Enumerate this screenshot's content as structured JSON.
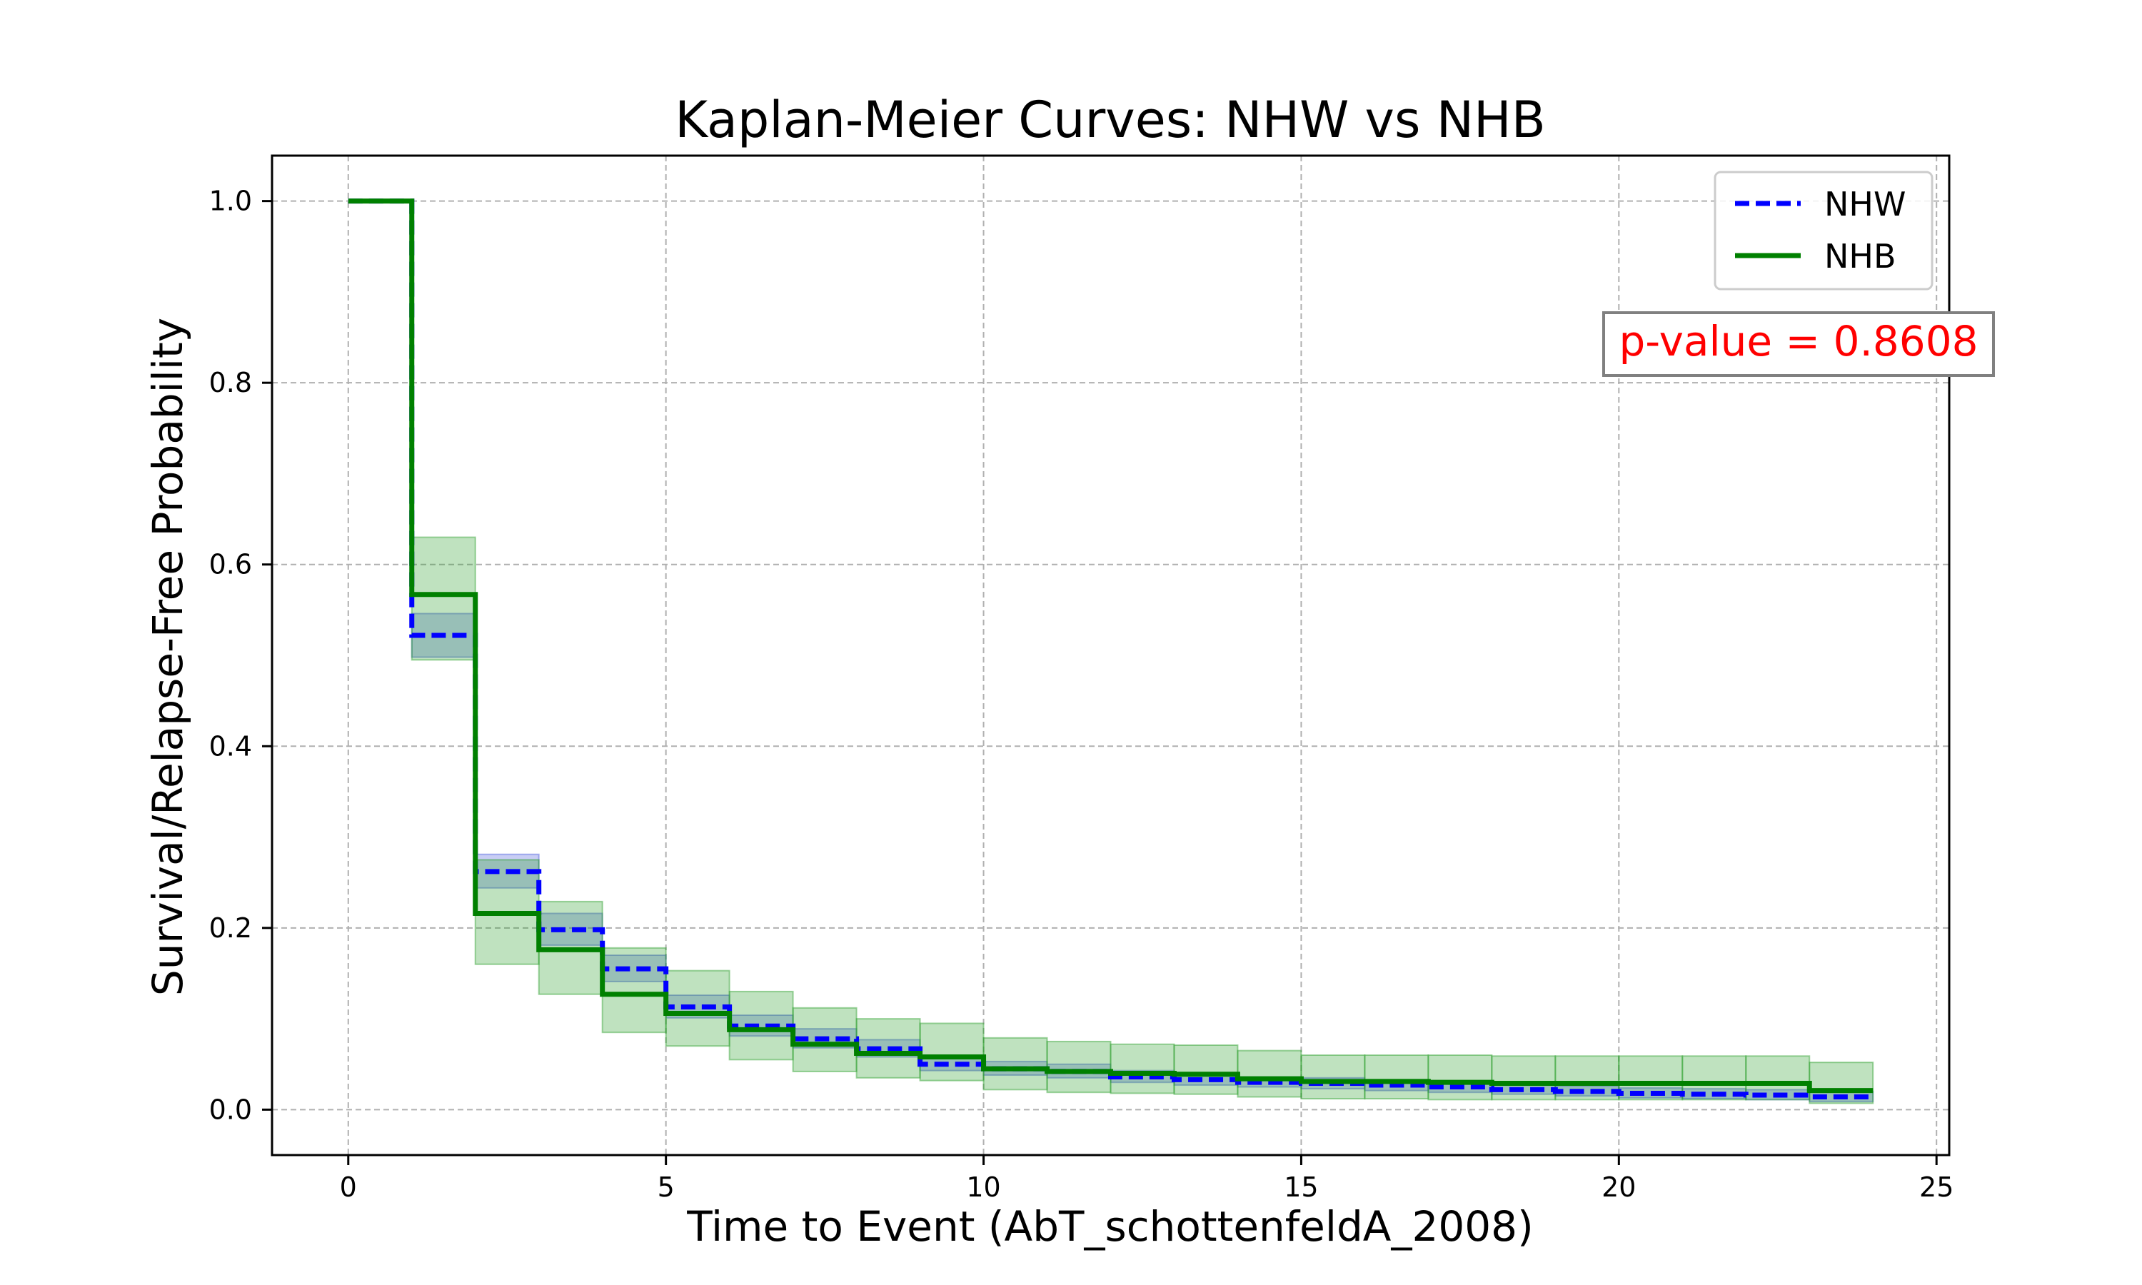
{
  "chart_data": {
    "type": "line",
    "subtype": "kaplan-meier step curves with confidence bands",
    "title": "Kaplan-Meier Curves: NHW vs NHB",
    "xlabel": "Time to Event (AbT_schottenfeldA_2008)",
    "ylabel": "Survival/Relapse-Free Probability",
    "xlim": [
      -1.2,
      25.2
    ],
    "ylim": [
      -0.05,
      1.05
    ],
    "xticks": [
      0,
      5,
      10,
      15,
      20,
      25
    ],
    "xtick_labels": [
      "0",
      "5",
      "10",
      "15",
      "20",
      "25"
    ],
    "yticks": [
      0.0,
      0.2,
      0.4,
      0.6,
      0.8,
      1.0
    ],
    "ytick_labels": [
      "0.0",
      "0.2",
      "0.4",
      "0.6",
      "0.8",
      "1.0"
    ],
    "grid": true,
    "legend_position": "top-right",
    "annotation": {
      "text": "p-value = 0.8608",
      "color": "#ff0000",
      "position": "upper-right"
    },
    "series": [
      {
        "name": "NHW",
        "color": "#0000ff",
        "line_style": "dashed",
        "band_color": "#4a5bdc",
        "x": [
          0,
          1,
          2,
          3,
          4,
          5,
          6,
          7,
          8,
          9,
          10,
          11,
          12,
          13,
          14,
          15,
          16,
          17,
          18,
          19,
          20,
          21,
          22,
          23,
          24
        ],
        "y": [
          1.0,
          0.522,
          0.262,
          0.198,
          0.155,
          0.113,
          0.092,
          0.078,
          0.067,
          0.05,
          0.045,
          0.042,
          0.036,
          0.033,
          0.03,
          0.029,
          0.027,
          0.025,
          0.022,
          0.02,
          0.018,
          0.017,
          0.016,
          0.014,
          0.014
        ],
        "ci_lower": [
          1.0,
          0.498,
          0.244,
          0.181,
          0.141,
          0.101,
          0.081,
          0.068,
          0.058,
          0.043,
          0.038,
          0.035,
          0.03,
          0.027,
          0.025,
          0.023,
          0.021,
          0.019,
          0.017,
          0.015,
          0.013,
          0.012,
          0.011,
          0.009,
          0.009
        ],
        "ci_upper": [
          1.0,
          0.546,
          0.281,
          0.216,
          0.17,
          0.126,
          0.104,
          0.089,
          0.077,
          0.058,
          0.053,
          0.05,
          0.043,
          0.04,
          0.036,
          0.035,
          0.033,
          0.031,
          0.028,
          0.026,
          0.024,
          0.023,
          0.022,
          0.02,
          0.02
        ]
      },
      {
        "name": "NHB",
        "color": "#008000",
        "line_style": "solid",
        "band_color": "#2ca02c",
        "x": [
          0,
          1,
          2,
          3,
          4,
          5,
          6,
          7,
          8,
          9,
          10,
          11,
          12,
          13,
          14,
          15,
          16,
          17,
          18,
          19,
          20,
          21,
          22,
          23,
          24
        ],
        "y": [
          1.0,
          0.567,
          0.216,
          0.176,
          0.127,
          0.106,
          0.088,
          0.072,
          0.062,
          0.058,
          0.045,
          0.042,
          0.04,
          0.039,
          0.034,
          0.031,
          0.031,
          0.03,
          0.029,
          0.029,
          0.029,
          0.029,
          0.029,
          0.021,
          0.021
        ],
        "ci_lower": [
          1.0,
          0.495,
          0.16,
          0.127,
          0.085,
          0.07,
          0.055,
          0.042,
          0.035,
          0.032,
          0.022,
          0.019,
          0.018,
          0.017,
          0.014,
          0.012,
          0.012,
          0.011,
          0.011,
          0.011,
          0.011,
          0.011,
          0.011,
          0.007,
          0.007
        ],
        "ci_upper": [
          1.0,
          0.63,
          0.275,
          0.229,
          0.178,
          0.153,
          0.13,
          0.112,
          0.1,
          0.095,
          0.079,
          0.075,
          0.072,
          0.071,
          0.065,
          0.06,
          0.06,
          0.06,
          0.059,
          0.059,
          0.059,
          0.059,
          0.059,
          0.052,
          0.052
        ]
      }
    ]
  }
}
